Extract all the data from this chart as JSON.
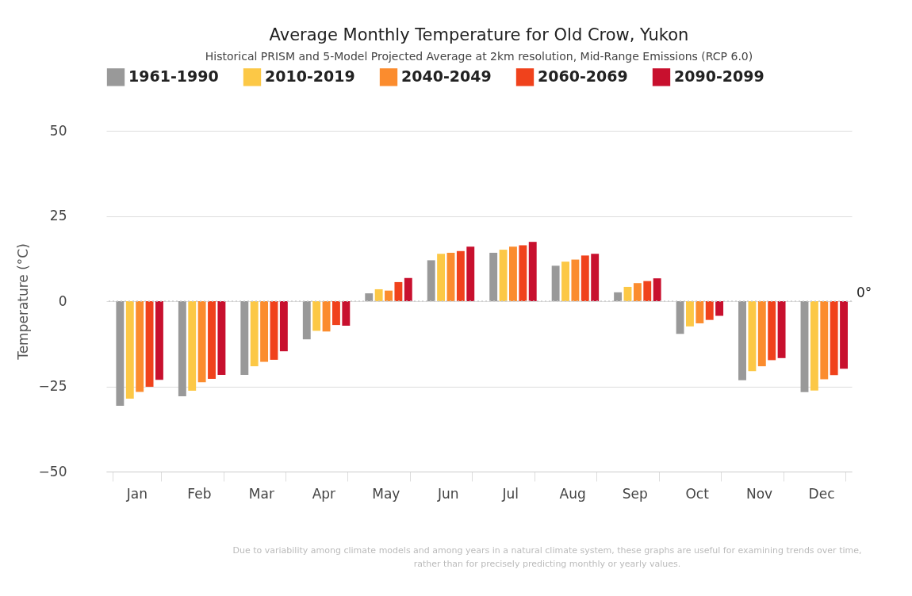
{
  "chart_data": {
    "type": "bar",
    "title": "Average Monthly Temperature for Old Crow, Yukon",
    "subtitle": "Historical PRISM and 5-Model Projected Average at 2km resolution, Mid-Range Emissions (RCP 6.0)",
    "ylabel": "Temperature (°C)",
    "categories": [
      "Jan",
      "Feb",
      "Mar",
      "Apr",
      "May",
      "Jun",
      "Jul",
      "Aug",
      "Sep",
      "Oct",
      "Nov",
      "Dec"
    ],
    "series": [
      {
        "name": "1961-1990",
        "color": "#999999",
        "values": [
          -30.7,
          -27.9,
          -21.6,
          -11.2,
          2.3,
          12.0,
          14.2,
          10.4,
          2.6,
          -9.6,
          -23.2,
          -26.7
        ]
      },
      {
        "name": "2010-2019",
        "color": "#fcc846",
        "values": [
          -28.6,
          -26.3,
          -19.1,
          -8.7,
          3.5,
          13.9,
          15.1,
          11.6,
          4.2,
          -7.4,
          -20.5,
          -26.2
        ]
      },
      {
        "name": "2040-2049",
        "color": "#fb8c2e",
        "values": [
          -26.6,
          -23.8,
          -17.8,
          -8.9,
          3.1,
          14.2,
          16.0,
          12.2,
          5.3,
          -6.5,
          -19.1,
          -22.9
        ]
      },
      {
        "name": "2060-2069",
        "color": "#f0421c",
        "values": [
          -25.1,
          -22.8,
          -17.2,
          -7.0,
          5.6,
          14.7,
          16.4,
          13.4,
          5.9,
          -5.5,
          -17.3,
          -21.7
        ]
      },
      {
        "name": "2090-2099",
        "color": "#c8102e",
        "values": [
          -23.1,
          -21.6,
          -14.7,
          -7.2,
          6.8,
          16.0,
          17.4,
          13.9,
          6.7,
          -4.3,
          -16.7,
          -19.8
        ]
      }
    ],
    "ylim": [
      -50,
      50
    ],
    "yticks": [
      -50,
      -25,
      0,
      25,
      50
    ],
    "grid": "y",
    "legend": "top",
    "ref_lines": [
      {
        "axis": "y",
        "value": 0,
        "label": "0°",
        "color": "#cccccc",
        "line_style": "dotted"
      }
    ],
    "annotations": [
      "Due to variability among climate models and among years in a natural climate system, these graphs are useful for examining trends over time, rather than for precisely predicting monthly or yearly values."
    ]
  }
}
